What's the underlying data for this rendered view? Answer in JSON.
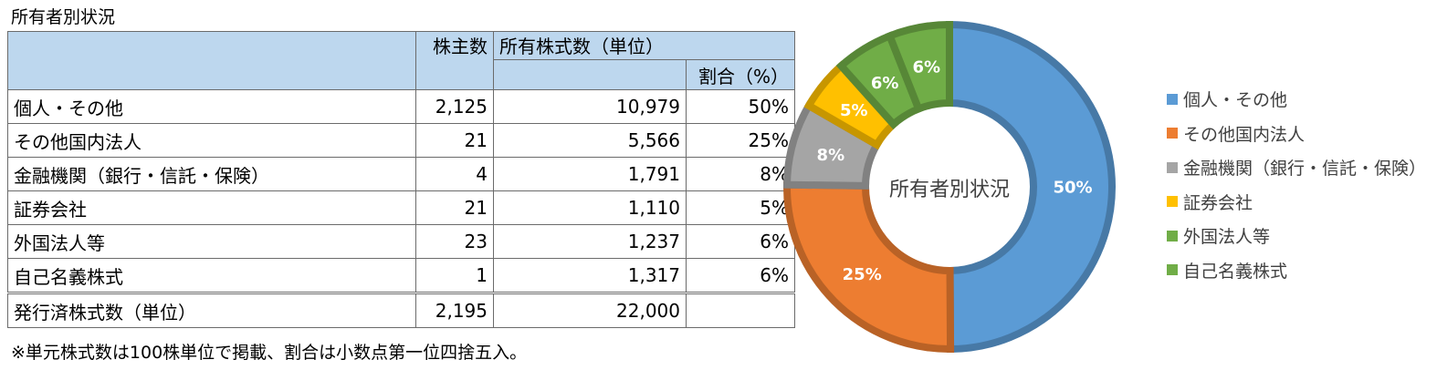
{
  "caption": "所有者別状況",
  "table": {
    "header": {
      "holders": "株主数",
      "shares": "所有株式数（単位）",
      "pct": "割合（%）"
    },
    "rows": [
      {
        "label": "個人・その他",
        "holders": "2,125",
        "shares": "10,979",
        "pct": "50%"
      },
      {
        "label": "その他国内法人",
        "holders": "21",
        "shares": "5,566",
        "pct": "25%"
      },
      {
        "label": "金融機関（銀行・信託・保険）",
        "holders": "4",
        "shares": "1,791",
        "pct": "8%"
      },
      {
        "label": "証券会社",
        "holders": "21",
        "shares": "1,110",
        "pct": "5%"
      },
      {
        "label": "外国法人等",
        "holders": "23",
        "shares": "1,237",
        "pct": "6%"
      },
      {
        "label": "自己名義株式",
        "holders": "1",
        "shares": "1,317",
        "pct": "6%"
      }
    ],
    "total": {
      "label": "発行済株式数（単位）",
      "holders": "2,195",
      "shares": "22,000"
    }
  },
  "note": "※単元株式数は100株単位で掲載、割合は小数点第一位四捨五入。",
  "chart_data": {
    "type": "pie",
    "hole": true,
    "center_label": "所有者別状況",
    "categories": [
      "個人・その他",
      "その他国内法人",
      "金融機関（銀行・信託・保険）",
      "証券会社",
      "外国法人等",
      "自己名義株式"
    ],
    "values": [
      10979,
      5566,
      1791,
      1110,
      1237,
      1317
    ],
    "data_labels": [
      "50%",
      "25%",
      "8%",
      "5%",
      "6%",
      "6%"
    ],
    "colors": [
      "#5b9bd5",
      "#ed7d31",
      "#a5a5a5",
      "#ffc000",
      "#70ad47",
      "#70ad47"
    ],
    "legend_position": "right"
  }
}
